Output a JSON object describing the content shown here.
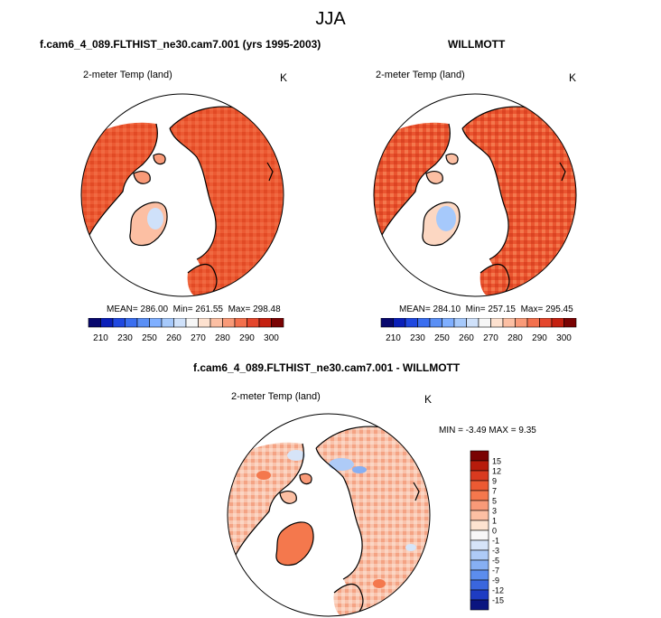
{
  "page": {
    "title": "JJA"
  },
  "chart_data": [
    {
      "type": "heatmap",
      "projection": "north polar stereographic",
      "title": "f.cam6_4_089.FLTHIST_ne30.cam7.001 (yrs 1995-2003)",
      "variable": "2-meter Temp (land)",
      "units": "K",
      "stats": {
        "mean": "286.00",
        "min": "261.55",
        "max": "298.48"
      },
      "stats_labels": {
        "mean": "MEAN=",
        "min": "Min=",
        "max": "Max="
      },
      "colorbar": {
        "orientation": "horizontal",
        "levels": [
          210,
          220,
          230,
          240,
          250,
          255,
          260,
          265,
          270,
          275,
          280,
          285,
          290,
          295,
          300
        ],
        "tick_labels": [
          "210",
          "230",
          "250",
          "260",
          "270",
          "280",
          "290",
          "300"
        ],
        "colors": [
          "#08086e",
          "#0a1fb8",
          "#1f48e0",
          "#3a6ef0",
          "#5a8ff5",
          "#7fafff",
          "#a6c9fb",
          "#cfe1fa",
          "#f6f6f6",
          "#fde1cf",
          "#fcbfa3",
          "#f99a78",
          "#f3704d",
          "#e4462c",
          "#c42010",
          "#7a0303"
        ]
      },
      "map_summary": {
        "dominant_value_k": 286,
        "color": "#ee5a33"
      }
    },
    {
      "type": "heatmap",
      "projection": "north polar stereographic",
      "title": "WILLMOTT",
      "variable": "2-meter Temp (land)",
      "units": "K",
      "stats": {
        "mean": "284.10",
        "min": "257.15",
        "max": "295.45"
      },
      "stats_labels": {
        "mean": "MEAN=",
        "min": "Min=",
        "max": "Max="
      },
      "colorbar": {
        "orientation": "horizontal",
        "levels": [
          210,
          220,
          230,
          240,
          250,
          255,
          260,
          265,
          270,
          275,
          280,
          285,
          290,
          295,
          300
        ],
        "tick_labels": [
          "210",
          "230",
          "250",
          "260",
          "270",
          "280",
          "290",
          "300"
        ],
        "colors": [
          "#08086e",
          "#0a1fb8",
          "#1f48e0",
          "#3a6ef0",
          "#5a8ff5",
          "#7fafff",
          "#a6c9fb",
          "#cfe1fa",
          "#f6f6f6",
          "#fde1cf",
          "#fcbfa3",
          "#f99a78",
          "#f3704d",
          "#e4462c",
          "#c42010",
          "#7a0303"
        ]
      },
      "map_summary": {
        "dominant_value_k": 284,
        "color": "#ee5a33"
      }
    },
    {
      "type": "heatmap",
      "projection": "north polar stereographic",
      "title": "f.cam6_4_089.FLTHIST_ne30.cam7.001 - WILLMOTT",
      "variable": "2-meter Temp (land)",
      "units": "K",
      "stats_text": "MIN =  -3.49 MAX =   9.35",
      "colorbar": {
        "orientation": "vertical",
        "tick_labels": [
          "15",
          "12",
          "9",
          "7",
          "5",
          "3",
          "1",
          "0",
          "-1",
          "-3",
          "-5",
          "-7",
          "-9",
          "-12",
          "-15"
        ],
        "colors": [
          "#7a0303",
          "#b71c0c",
          "#d93a1f",
          "#ec5a33",
          "#f4784d",
          "#f99a78",
          "#fcbfa3",
          "#fde3d0",
          "#f7f7f7",
          "#d6e4f8",
          "#aecbf7",
          "#86aff3",
          "#5c8ded",
          "#3a66dd",
          "#1e3cc2",
          "#0b1580"
        ]
      },
      "map_summary": {
        "dominant_value_k": 2,
        "color": "#f7c1ac"
      }
    }
  ]
}
